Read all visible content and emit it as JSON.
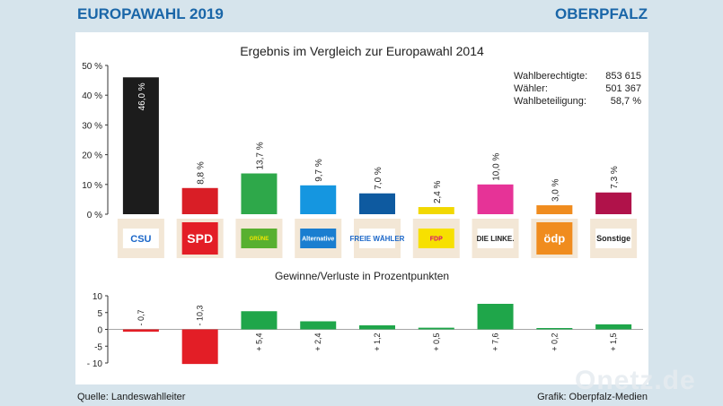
{
  "header": {
    "left": "EUROPAWAHL 2019",
    "right": "OBERPFALZ"
  },
  "footer": {
    "left": "Quelle: Landeswahlleiter",
    "right": "Grafik: Oberpfalz-Medien"
  },
  "watermark": "Onetz.de",
  "stats": {
    "items": [
      {
        "label": "Wahlberechtigte:",
        "value": "853 615"
      },
      {
        "label": "Wähler:",
        "value": "501 367"
      },
      {
        "label": "Wahlbeteiligung:",
        "value": "58,7 %"
      }
    ]
  },
  "colors": {
    "CSU": "#1c1c1c",
    "SPD": "#d91e26",
    "GRÜNE": "#2ea84a",
    "AfD": "#1596e0",
    "FREIE WÄHLER": "#0e5aa0",
    "FDP": "#f2d800",
    "DIE LINKE.": "#e63397",
    "ödp": "#f08c1e",
    "Sonstige": "#b0124a",
    "gain": "#1fa64a",
    "loss": "#e31e26",
    "logo_bg": "#f3e7d6"
  },
  "chart_data": [
    {
      "type": "bar",
      "title": "Ergebnis im Vergleich zur Europawahl 2014",
      "categories": [
        "CSU",
        "SPD",
        "GRÜNE",
        "AfD",
        "FREIE WÄHLER",
        "FDP",
        "DIE LINKE.",
        "ödp",
        "Sonstige"
      ],
      "values": [
        46.0,
        8.8,
        13.7,
        9.7,
        7.0,
        2.4,
        10.0,
        3.0,
        7.3
      ],
      "value_labels": [
        "46,0 %",
        "8,8 %",
        "13,7 %",
        "9,7 %",
        "7,0 %",
        "2,4 %",
        "10,0 %",
        "3,0 %",
        "7,3 %"
      ],
      "ylim": [
        0,
        50
      ],
      "yticks": [
        0,
        10,
        20,
        30,
        40,
        50
      ],
      "ytick_labels": [
        "0 %",
        "10 %",
        "20 %",
        "30 %",
        "40 %",
        "50 %"
      ],
      "logo_labels": [
        "CSU",
        "SPD",
        "GRÜNE",
        "Alternative",
        "FREIE WÄHLER",
        "FDP",
        "DIE LINKE.",
        "ödp",
        "Sonstige"
      ],
      "xlabel": "",
      "ylabel": ""
    },
    {
      "type": "bar",
      "title": "Gewinne/Verluste in Prozentpunkten",
      "categories": [
        "CSU",
        "SPD",
        "GRÜNE",
        "AfD",
        "FREIE WÄHLER",
        "FDP",
        "DIE LINKE.",
        "ödp",
        "Sonstige"
      ],
      "values": [
        -0.7,
        -10.3,
        5.4,
        2.4,
        1.2,
        0.5,
        7.6,
        0.2,
        1.5
      ],
      "value_labels": [
        "- 0,7",
        "- 10,3",
        "+ 5,4",
        "+ 2,4",
        "+ 1,2",
        "+ 0,5",
        "+ 7,6",
        "+ 0,2",
        "+ 1,5"
      ],
      "ylim": [
        -10,
        10
      ],
      "yticks": [
        10,
        5,
        0,
        -5,
        -10
      ],
      "ytick_labels": [
        "10",
        "5",
        "0",
        "-5",
        "- 10"
      ],
      "xlabel": "",
      "ylabel": ""
    }
  ]
}
